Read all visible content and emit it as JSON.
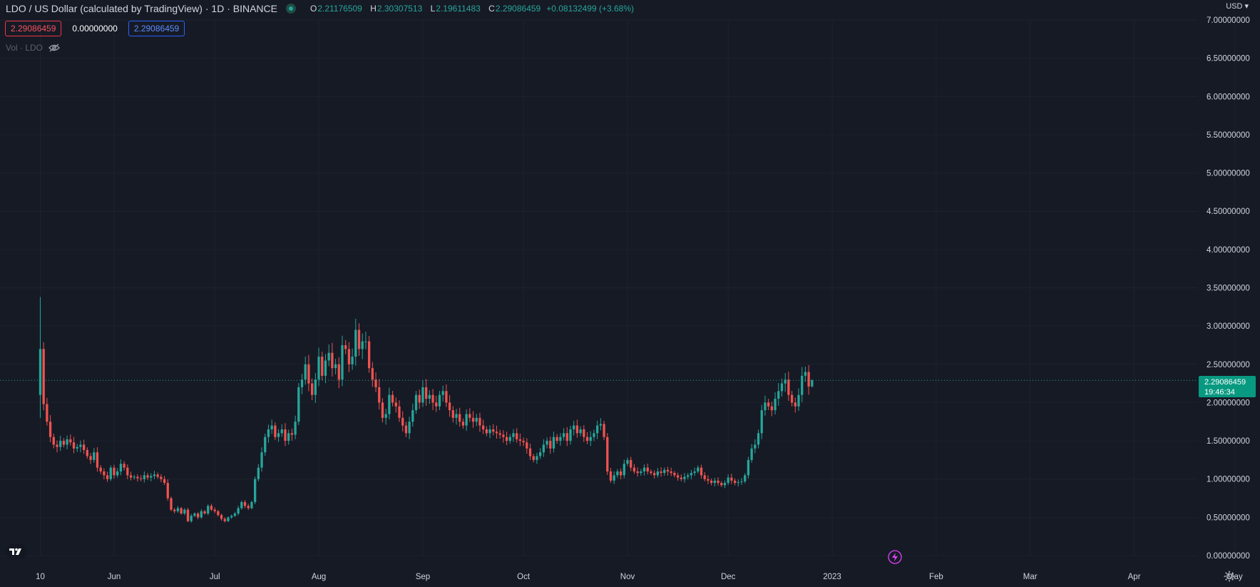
{
  "header": {
    "title": "LDO / US Dollar (calculated by TradingView) · 1D · BINANCE",
    "ohlc": [
      {
        "key": "O",
        "value": "2.21176509"
      },
      {
        "key": "H",
        "value": "2.30307513"
      },
      {
        "key": "L",
        "value": "2.19611483"
      },
      {
        "key": "C",
        "value": "2.29086459"
      }
    ],
    "change": "+0.08132499 (+3.68%)"
  },
  "price_boxes": {
    "sell": "2.29086459",
    "spread": "0.00000000",
    "buy": "2.29086459"
  },
  "volume_label": "Vol · LDO",
  "currency": "USD",
  "last_price": {
    "price": "2.29086459",
    "countdown": "19:46:34"
  },
  "colors": {
    "up": "#26a69a",
    "down": "#ef5350",
    "bg": "#161a25",
    "grid": "#1e222d",
    "axis_text": "#d1d4dc"
  },
  "icons": [
    "eye-crossed-icon",
    "tradingview-logo-icon",
    "lightning-icon",
    "gear-icon"
  ],
  "chart_data": {
    "type": "candlestick",
    "title": "LDO / US Dollar (calculated by TradingView) · 1D · BINANCE",
    "ylim": [
      0,
      7
    ],
    "y_ticks": [
      "0.00000000",
      "0.50000000",
      "1.00000000",
      "1.50000000",
      "2.00000000",
      "2.50000000",
      "3.00000000",
      "3.50000000",
      "4.00000000",
      "4.50000000",
      "5.00000000",
      "5.50000000",
      "6.00000000",
      "6.50000000",
      "7.00000000"
    ],
    "x_ticks": [
      "10",
      "Jun",
      "Jul",
      "Aug",
      "Sep",
      "Oct",
      "Nov",
      "Dec",
      "2023",
      "Feb",
      "Mar",
      "Apr",
      "May"
    ],
    "xlim_days": [
      -12,
      345
    ],
    "candles_start_day": 0,
    "close_series": [
      2.7,
      1.98,
      1.75,
      1.55,
      1.45,
      1.42,
      1.5,
      1.45,
      1.52,
      1.48,
      1.4,
      1.42,
      1.45,
      1.38,
      1.3,
      1.25,
      1.35,
      1.15,
      1.1,
      1.05,
      1.0,
      1.15,
      1.05,
      1.1,
      1.2,
      1.15,
      1.05,
      1.02,
      1.03,
      1.01,
      1.0,
      1.05,
      1.02,
      1.04,
      1.06,
      1.03,
      1.0,
      0.95,
      0.75,
      0.6,
      0.58,
      0.62,
      0.55,
      0.6,
      0.45,
      0.52,
      0.55,
      0.5,
      0.58,
      0.55,
      0.65,
      0.6,
      0.58,
      0.53,
      0.48,
      0.45,
      0.5,
      0.52,
      0.55,
      0.62,
      0.7,
      0.65,
      0.62,
      0.7,
      1.0,
      1.15,
      1.35,
      1.55,
      1.65,
      1.7,
      1.55,
      1.6,
      1.65,
      1.5,
      1.6,
      1.58,
      1.75,
      2.2,
      2.3,
      2.5,
      2.25,
      2.1,
      2.3,
      2.6,
      2.35,
      2.55,
      2.65,
      2.45,
      2.5,
      2.3,
      2.75,
      2.7,
      2.5,
      2.6,
      2.95,
      2.7,
      2.8,
      2.8,
      2.45,
      2.3,
      2.2,
      2.0,
      1.8,
      1.85,
      2.1,
      2.0,
      1.95,
      1.8,
      1.7,
      1.6,
      1.75,
      1.9,
      2.1,
      2.0,
      2.2,
      2.05,
      2.1,
      2.0,
      1.95,
      2.1,
      2.15,
      2.0,
      1.9,
      1.8,
      1.85,
      1.75,
      1.7,
      1.85,
      1.8,
      1.75,
      1.8,
      1.7,
      1.65,
      1.6,
      1.65,
      1.62,
      1.6,
      1.58,
      1.55,
      1.5,
      1.55,
      1.6,
      1.52,
      1.5,
      1.48,
      1.4,
      1.3,
      1.25,
      1.3,
      1.35,
      1.45,
      1.5,
      1.4,
      1.55,
      1.5,
      1.55,
      1.6,
      1.5,
      1.65,
      1.7,
      1.6,
      1.65,
      1.55,
      1.5,
      1.55,
      1.6,
      1.7,
      1.72,
      1.55,
      1.1,
      0.98,
      1.05,
      1.1,
      1.05,
      1.2,
      1.25,
      1.15,
      1.1,
      1.08,
      1.1,
      1.15,
      1.1,
      1.08,
      1.05,
      1.1,
      1.08,
      1.12,
      1.1,
      1.08,
      1.05,
      1.02,
      1.0,
      1.03,
      1.05,
      1.08,
      1.1,
      1.15,
      1.05,
      1.0,
      0.98,
      0.95,
      0.98,
      0.95,
      0.92,
      0.95,
      1.02,
      0.98,
      0.95,
      0.96,
      0.97,
      1.05,
      1.25,
      1.4,
      1.45,
      1.6,
      1.9,
      2.0,
      1.95,
      1.9,
      2.05,
      2.15,
      2.25,
      2.3,
      2.1,
      2.0,
      1.95,
      2.1,
      2.35,
      2.4,
      2.21,
      2.29
    ],
    "last": {
      "open": 2.21176509,
      "high": 2.30307513,
      "low": 2.19611483,
      "close": 2.29086459
    }
  }
}
